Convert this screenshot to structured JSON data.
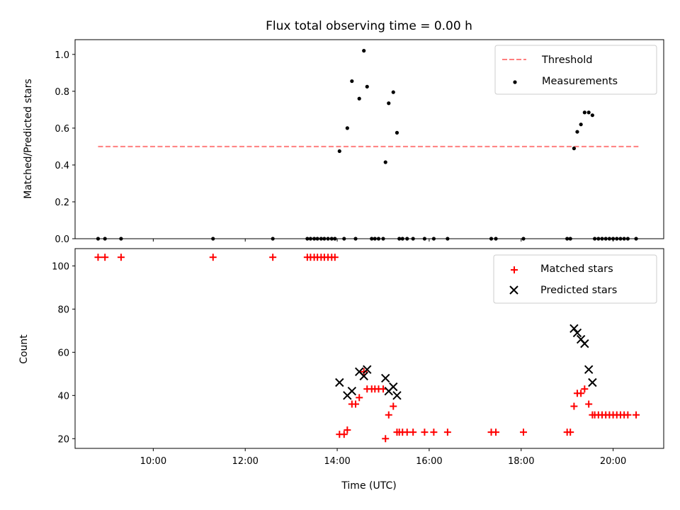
{
  "chart_data": [
    {
      "type": "scatter",
      "title": "Flux total observing time = 0.00 h",
      "ylabel": "Matched/Predicted stars",
      "xlim": [
        8.3,
        21.1
      ],
      "ylim": [
        0,
        1.08
      ],
      "yticks": [
        0.0,
        0.2,
        0.4,
        0.6,
        0.8,
        1.0
      ],
      "ytick_labels": [
        "0.0",
        "0.2",
        "0.4",
        "0.6",
        "0.8",
        "1.0"
      ],
      "legend_position": "top-right",
      "threshold": {
        "name": "Threshold",
        "color": "#ff7f7f",
        "value": 0.5,
        "x": [
          8.8,
          20.55
        ]
      },
      "series": [
        {
          "name": "Measurements",
          "color": "#000000",
          "x": [
            8.8,
            8.95,
            9.3,
            11.3,
            12.6,
            13.35,
            13.42,
            13.5,
            13.57,
            13.65,
            13.72,
            13.8,
            13.88,
            13.95,
            14.05,
            14.15,
            14.22,
            14.32,
            14.4,
            14.48,
            14.58,
            14.65,
            14.75,
            14.82,
            14.9,
            15.0,
            15.05,
            15.12,
            15.22,
            15.3,
            15.35,
            15.42,
            15.52,
            15.65,
            15.9,
            16.1,
            16.4,
            17.35,
            17.45,
            18.05,
            19.0,
            19.07,
            19.15,
            19.22,
            19.3,
            19.38,
            19.47,
            19.55,
            19.6,
            19.68,
            19.76,
            19.84,
            19.92,
            20.0,
            20.08,
            20.16,
            20.24,
            20.32,
            20.5
          ],
          "y": [
            0,
            0,
            0,
            0,
            0,
            0,
            0,
            0,
            0,
            0,
            0,
            0,
            0,
            0,
            0.475,
            0,
            0.6,
            0.855,
            0,
            0.76,
            1.02,
            0.825,
            0,
            0,
            0,
            0,
            0.415,
            0.735,
            0.795,
            0.575,
            0,
            0,
            0,
            0,
            0,
            0,
            0,
            0,
            0,
            0,
            0,
            0,
            0.49,
            0.58,
            0.62,
            0.685,
            0.685,
            0.67,
            0,
            0,
            0,
            0,
            0,
            0,
            0,
            0,
            0,
            0,
            0
          ]
        }
      ]
    },
    {
      "type": "scatter",
      "xlabel": "Time (UTC)",
      "ylabel": "Count",
      "xlim": [
        8.3,
        21.1
      ],
      "ylim": [
        15.5,
        108
      ],
      "xticks": [
        10,
        12,
        14,
        16,
        18,
        20
      ],
      "xtick_labels": [
        "10:00",
        "12:00",
        "14:00",
        "16:00",
        "18:00",
        "20:00"
      ],
      "yticks": [
        20,
        40,
        60,
        80,
        100
      ],
      "ytick_labels": [
        "20",
        "40",
        "60",
        "80",
        "100"
      ],
      "legend_position": "top-right",
      "series": [
        {
          "name": "Matched stars",
          "marker": "plus",
          "color": "#ff0000",
          "x": [
            8.8,
            8.95,
            9.3,
            11.3,
            12.6,
            13.35,
            13.42,
            13.5,
            13.57,
            13.65,
            13.72,
            13.8,
            13.88,
            13.95,
            14.05,
            14.15,
            14.22,
            14.32,
            14.4,
            14.48,
            14.58,
            14.65,
            14.75,
            14.82,
            14.9,
            15.0,
            15.05,
            15.12,
            15.22,
            15.3,
            15.35,
            15.42,
            15.52,
            15.65,
            15.9,
            16.1,
            16.4,
            17.35,
            17.45,
            18.05,
            19.0,
            19.07,
            19.15,
            19.22,
            19.3,
            19.38,
            19.47,
            19.55,
            19.6,
            19.68,
            19.76,
            19.84,
            19.92,
            20.0,
            20.08,
            20.16,
            20.24,
            20.32,
            20.5
          ],
          "y": [
            104,
            104,
            104,
            104,
            104,
            104,
            104,
            104,
            104,
            104,
            104,
            104,
            104,
            104,
            22,
            22,
            24,
            36,
            36,
            39,
            51,
            43,
            43,
            43,
            43,
            43,
            20,
            31,
            35,
            23,
            23,
            23,
            23,
            23,
            23,
            23,
            23,
            23,
            23,
            23,
            23,
            23,
            35,
            41,
            41,
            43,
            36,
            31,
            31,
            31,
            31,
            31,
            31,
            31,
            31,
            31,
            31,
            31,
            31
          ]
        },
        {
          "name": "Predicted stars",
          "marker": "x",
          "color": "#000000",
          "x": [
            14.05,
            14.22,
            14.32,
            14.48,
            14.58,
            14.65,
            15.05,
            15.12,
            15.22,
            15.3,
            19.15,
            19.22,
            19.3,
            19.38,
            19.47,
            19.55
          ],
          "y": [
            46,
            40,
            42,
            51,
            49,
            52,
            48,
            42,
            44,
            40,
            71,
            69,
            66,
            64,
            52,
            46
          ]
        }
      ]
    }
  ]
}
